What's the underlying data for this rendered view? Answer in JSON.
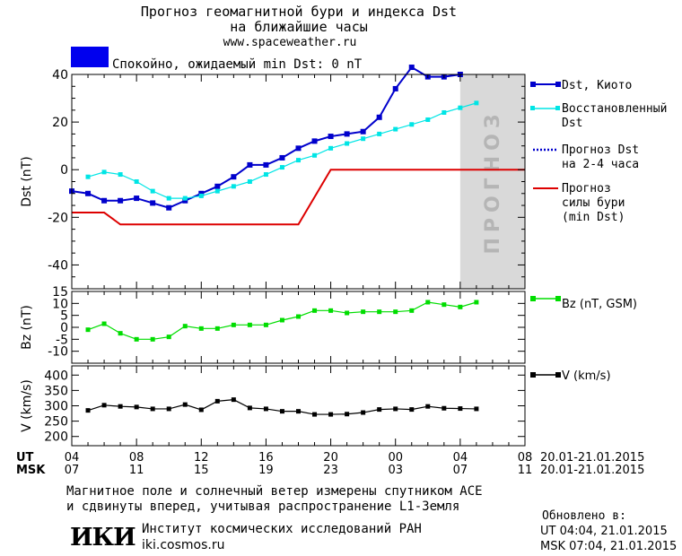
{
  "header": {
    "title_line1": "Прогноз геомагнитной бури и индекса Dst",
    "title_line2": "на ближайшие часы",
    "site": "www.spaceweather.ru",
    "status_text": "Спокойно, ожидаемый min Dst: 0 nT",
    "status_color": "#0000ee"
  },
  "forecast_label": "ПРОГНОЗ",
  "time_axis": {
    "ut_label": "UT",
    "msk_label": "MSK",
    "ut_ticks": [
      "04",
      "08",
      "12",
      "16",
      "20",
      "00",
      "04",
      "08"
    ],
    "msk_ticks": [
      "07",
      "11",
      "15",
      "19",
      "23",
      "03",
      "07",
      "11"
    ],
    "ut_range": "20.01-21.01.2015",
    "msk_range": "20.01-21.01.2015"
  },
  "legend": {
    "dst_kyoto": "Dst, Киото",
    "dst_restored_1": "Восстановленный",
    "dst_restored_2": "Dst",
    "dst_forecast_1": "Прогноз Dst",
    "dst_forecast_2": "на 2-4 часа",
    "storm_1": "Прогноз",
    "storm_2": "силы бури",
    "storm_3": "(min Dst)",
    "bz": "Bz (nT, GSM)",
    "v": "V (km/s)"
  },
  "footer": {
    "note_line1": "Магнитное поле и солнечный ветер измерены спутником ACE",
    "note_line2": "и сдвинуты вперед, учитывая распространение L1-Земля",
    "logo_text": "ИКИ",
    "institute": "Институт космических исследований РАН",
    "institute_site": "iki.cosmos.ru",
    "updated_label": "Обновлено в:",
    "updated_ut": "UT  04:04, 21.01.2015",
    "updated_msk": "MSK 07:04, 21.01.2015"
  },
  "colors": {
    "dst_kyoto": "#0000cc",
    "dst_restored": "#00e5e5",
    "dst_forecast": "#0000cc",
    "storm_forecast": "#dd0000",
    "bz": "#00dd00",
    "v": "#000000",
    "forecast_zone": "#d9d9d9"
  },
  "chart_data": [
    {
      "type": "line",
      "x_unit": "hours since 04 UT 20.01.2015",
      "xlim": [
        0,
        28
      ],
      "ylim": [
        -50,
        40
      ],
      "yticks": [
        -40,
        -20,
        0,
        20,
        40
      ],
      "ylabel": "Dst (nT)",
      "forecast_zone": [
        24,
        28
      ],
      "series": [
        {
          "name": "Dst, Киото",
          "x": [
            0,
            1,
            2,
            3,
            4,
            5,
            6,
            7,
            8,
            9,
            10,
            11,
            12,
            13,
            14,
            15,
            16,
            17,
            18,
            19,
            20,
            21,
            22,
            23,
            24
          ],
          "values": [
            -9,
            -10,
            -13,
            -13,
            -12,
            -14,
            -16,
            -13,
            -10,
            -7,
            -3,
            2,
            2,
            5,
            9,
            12,
            14,
            15,
            16,
            22,
            34,
            43,
            39,
            39,
            40
          ]
        },
        {
          "name": "Восстановленный Dst",
          "x": [
            1,
            2,
            3,
            4,
            5,
            6,
            7,
            8,
            9,
            10,
            11,
            12,
            13,
            14,
            15,
            16,
            17,
            18,
            19,
            20,
            21,
            22,
            23,
            24,
            25
          ],
          "values": [
            -3,
            -1,
            -2,
            -5,
            -9,
            -12,
            -12,
            -11,
            -9,
            -7,
            -5,
            -2,
            1,
            4,
            6,
            9,
            11,
            13,
            15,
            17,
            19,
            21,
            24,
            26,
            28
          ]
        },
        {
          "name": "Прогноз Dst на 2-4 часа",
          "x": [],
          "values": []
        },
        {
          "name": "Прогноз силы бури (min Dst)",
          "x": [
            0,
            2,
            3,
            14,
            16,
            28
          ],
          "values": [
            -18,
            -18,
            -23,
            -23,
            0,
            0
          ]
        }
      ]
    },
    {
      "type": "line",
      "x_unit": "hours since 04 UT 20.01.2015",
      "xlim": [
        0,
        28
      ],
      "ylim": [
        -15,
        15
      ],
      "yticks": [
        -10,
        -5,
        0,
        5,
        10,
        15
      ],
      "ylabel": "Bz (nT)",
      "series": [
        {
          "name": "Bz (nT, GSM)",
          "x": [
            1,
            2,
            3,
            4,
            5,
            6,
            7,
            8,
            9,
            10,
            11,
            12,
            13,
            14,
            15,
            16,
            17,
            18,
            19,
            20,
            21,
            22,
            23,
            24,
            25
          ],
          "values": [
            -1,
            1.5,
            -2.5,
            -5,
            -5,
            -4,
            0.5,
            -0.5,
            -0.5,
            1,
            1,
            1,
            3,
            4.5,
            7,
            7,
            6,
            6.5,
            6.5,
            6.5,
            7,
            10.5,
            9.5,
            8.5,
            10.5
          ]
        }
      ]
    },
    {
      "type": "line",
      "x_unit": "hours since 04 UT 20.01.2015",
      "xlim": [
        0,
        28
      ],
      "ylim": [
        170,
        430
      ],
      "yticks": [
        200,
        250,
        300,
        350,
        400
      ],
      "ylabel": "V (km/s)",
      "series": [
        {
          "name": "V (km/s)",
          "x": [
            1,
            2,
            3,
            4,
            5,
            6,
            7,
            8,
            9,
            10,
            11,
            12,
            13,
            14,
            15,
            16,
            17,
            18,
            19,
            20,
            21,
            22,
            23,
            24,
            25
          ],
          "values": [
            285,
            302,
            298,
            296,
            290,
            290,
            304,
            287,
            315,
            320,
            293,
            290,
            282,
            282,
            272,
            272,
            273,
            278,
            288,
            290,
            288,
            298,
            292,
            291,
            290
          ]
        }
      ]
    }
  ]
}
